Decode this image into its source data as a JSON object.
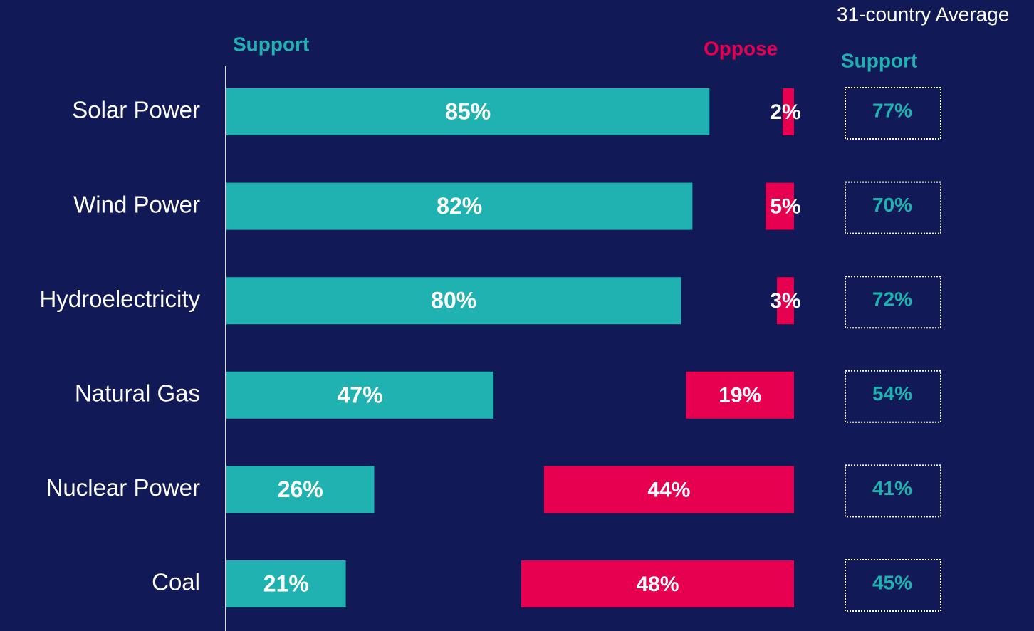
{
  "chart_data": {
    "type": "bar",
    "categories": [
      "Solar Power",
      "Wind Power",
      "Hydroelectricity",
      "Natural Gas",
      "Nuclear Power",
      "Coal"
    ],
    "series": [
      {
        "name": "Support",
        "color": "#20b2b0",
        "values": [
          85,
          82,
          80,
          47,
          26,
          21
        ],
        "value_labels": [
          "85%",
          "82%",
          "80%",
          "47%",
          "26%",
          "21%"
        ]
      },
      {
        "name": "Oppose",
        "color": "#e6004f",
        "values": [
          2,
          5,
          3,
          19,
          44,
          48
        ],
        "value_labels": [
          "2%",
          "5%",
          "3%",
          "19%",
          "44%",
          "48%"
        ]
      }
    ],
    "average": {
      "title": "31-country Average",
      "subtitle": "Support",
      "color": "#20b2b0",
      "values": [
        77,
        70,
        72,
        54,
        41,
        45
      ],
      "value_labels": [
        "77%",
        "70%",
        "72%",
        "54%",
        "41%",
        "45%"
      ]
    }
  }
}
